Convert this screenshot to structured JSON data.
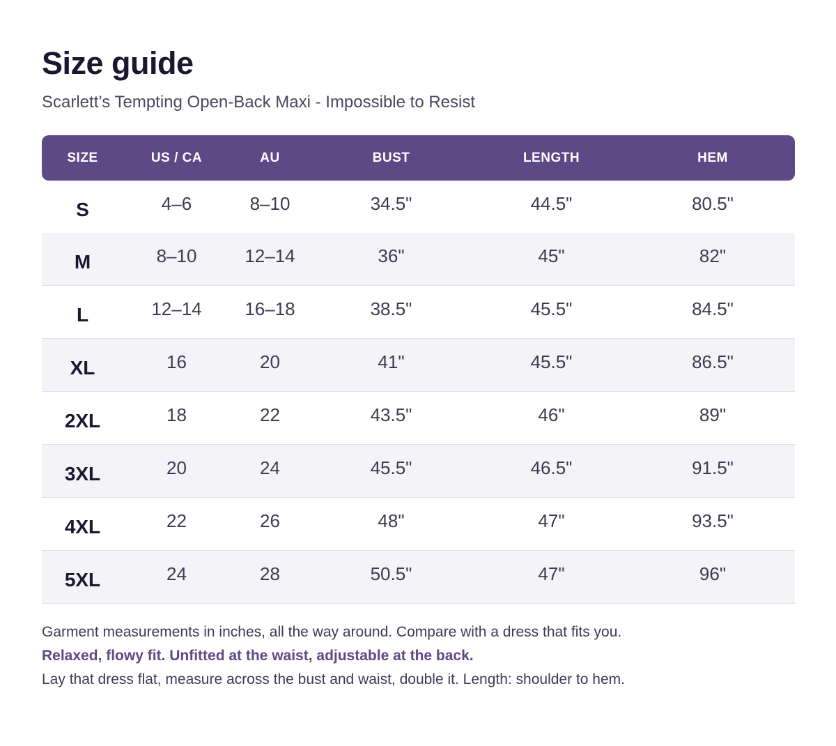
{
  "header": {
    "title": "Size guide",
    "subtitle": "Scarlett’s Tempting Open-Back Maxi - Impossible to Resist"
  },
  "table": {
    "columns": [
      "SIZE",
      "US / CA",
      "AU",
      "BUST",
      "LENGTH",
      "HEM"
    ],
    "rows": [
      [
        "S",
        "4–6",
        "8–10",
        "34.5\"",
        "44.5\"",
        "80.5\""
      ],
      [
        "M",
        "8–10",
        "12–14",
        "36\"",
        "45\"",
        "82\""
      ],
      [
        "L",
        "12–14",
        "16–18",
        "38.5\"",
        "45.5\"",
        "84.5\""
      ],
      [
        "XL",
        "16",
        "20",
        "41\"",
        "45.5\"",
        "86.5\""
      ],
      [
        "2XL",
        "18",
        "22",
        "43.5\"",
        "46\"",
        "89\""
      ],
      [
        "3XL",
        "20",
        "24",
        "45.5\"",
        "46.5\"",
        "91.5\""
      ],
      [
        "4XL",
        "22",
        "26",
        "48\"",
        "47\"",
        "93.5\""
      ],
      [
        "5XL",
        "24",
        "28",
        "50.5\"",
        "47\"",
        "96\""
      ]
    ]
  },
  "notes": {
    "line1": "Garment measurements in inches, all the way around. Compare with a dress that fits you.",
    "line2": "Relaxed, flowy fit. Unfitted at the waist, adjustable at the back.",
    "line3": "Lay that dress flat, measure across the bust and waist, double it.  Length: shoulder to hem."
  },
  "colors": {
    "accent": "#5e4987",
    "title_text": "#1a1730",
    "body_text": "#3e3a52",
    "stripe_row": "#f4f3f8"
  }
}
